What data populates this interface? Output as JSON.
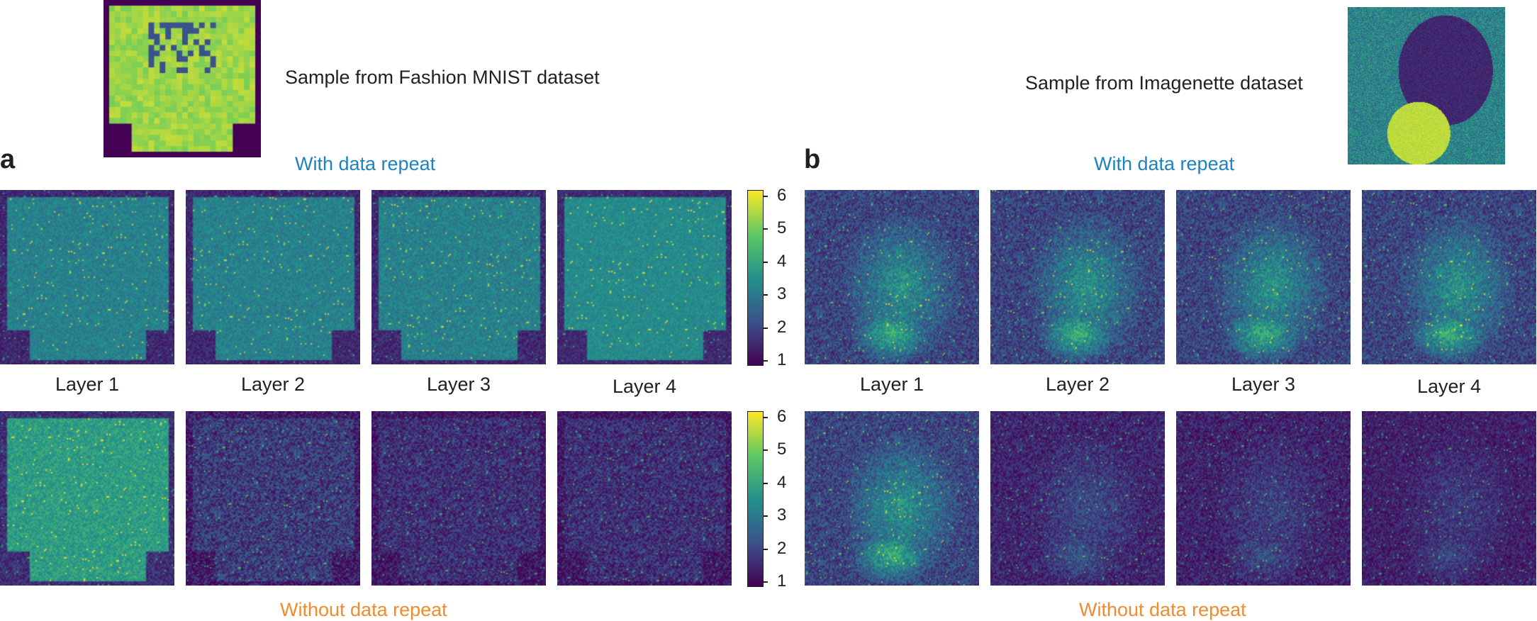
{
  "sample_a_caption": "Sample from Fashion MNIST dataset",
  "sample_b_caption": "Sample from Imagenette dataset",
  "panel_a": {
    "letter": "a",
    "with_label": "With data repeat",
    "without_label": "Without data repeat",
    "layers": [
      "Layer 1",
      "Layer 2",
      "Layer 3",
      "Layer 4"
    ],
    "colorbar_ticks": [
      "6",
      "5",
      "4",
      "3",
      "2",
      "1"
    ]
  },
  "panel_b": {
    "letter": "b",
    "with_label": "With data repeat",
    "without_label": "Without data repeat",
    "layers": [
      "Layer 1",
      "Layer 2",
      "Layer 3",
      "Layer 4"
    ]
  },
  "colormap": {
    "name": "viridis",
    "stops": [
      "#440154",
      "#3b528b",
      "#21918c",
      "#5ec962",
      "#fde725"
    ],
    "min": 1,
    "max": 6.2
  }
}
